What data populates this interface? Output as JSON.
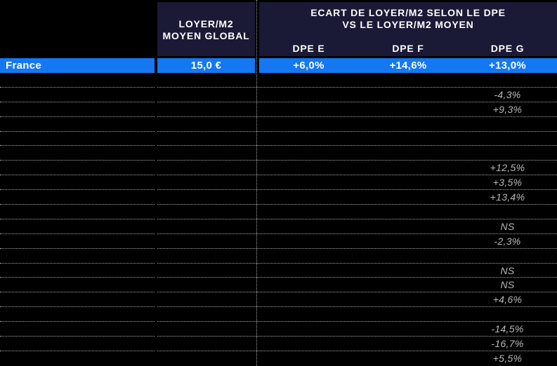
{
  "chart_data": {
    "type": "table",
    "header": {
      "loyer_line1": "LOYER/M2",
      "loyer_line2": "MOYEN GLOBAL",
      "ecart_line1": "ECART DE LOYER/M2 SELON LE DPE",
      "ecart_line2": "VS LE LOYER/M2 MOYEN",
      "dpe_e": "DPE E",
      "dpe_f": "DPE F",
      "dpe_g": "DPE G"
    },
    "france_row": {
      "label": "France",
      "loyer": "15,0 €",
      "dpe_e": "+6,0%",
      "dpe_f": "+14,6%",
      "dpe_g": "+13,0%"
    },
    "body_rows": [
      {
        "label": "",
        "loyer": "",
        "dpe_e": "",
        "dpe_f": "",
        "dpe_g": ""
      },
      {
        "label": "",
        "loyer": "",
        "dpe_e": "",
        "dpe_f": "",
        "dpe_g": "-4,3%"
      },
      {
        "label": "",
        "loyer": "",
        "dpe_e": "",
        "dpe_f": "",
        "dpe_g": "+9,3%"
      },
      {
        "label": "",
        "loyer": "",
        "dpe_e": "",
        "dpe_f": "",
        "dpe_g": ""
      },
      {
        "label": "",
        "loyer": "",
        "dpe_e": "",
        "dpe_f": "",
        "dpe_g": ""
      },
      {
        "label": "",
        "loyer": "",
        "dpe_e": "",
        "dpe_f": "",
        "dpe_g": ""
      },
      {
        "label": "",
        "loyer": "",
        "dpe_e": "",
        "dpe_f": "",
        "dpe_g": "+12,5%"
      },
      {
        "label": "",
        "loyer": "",
        "dpe_e": "",
        "dpe_f": "",
        "dpe_g": "+3,5%"
      },
      {
        "label": "",
        "loyer": "",
        "dpe_e": "",
        "dpe_f": "",
        "dpe_g": "+13,4%"
      },
      {
        "label": "",
        "loyer": "",
        "dpe_e": "",
        "dpe_f": "",
        "dpe_g": ""
      },
      {
        "label": "",
        "loyer": "",
        "dpe_e": "",
        "dpe_f": "",
        "dpe_g": "NS"
      },
      {
        "label": "",
        "loyer": "",
        "dpe_e": "",
        "dpe_f": "",
        "dpe_g": "-2,3%"
      },
      {
        "label": "",
        "loyer": "",
        "dpe_e": "",
        "dpe_f": "",
        "dpe_g": ""
      },
      {
        "label": "",
        "loyer": "",
        "dpe_e": "",
        "dpe_f": "",
        "dpe_g": "NS"
      },
      {
        "label": "",
        "loyer": "",
        "dpe_e": "",
        "dpe_f": "",
        "dpe_g": "NS"
      },
      {
        "label": "",
        "loyer": "",
        "dpe_e": "",
        "dpe_f": "",
        "dpe_g": "+4,6%"
      },
      {
        "label": "",
        "loyer": "",
        "dpe_e": "",
        "dpe_f": "",
        "dpe_g": ""
      },
      {
        "label": "",
        "loyer": "",
        "dpe_e": "",
        "dpe_f": "",
        "dpe_g": "-14,5%"
      },
      {
        "label": "",
        "loyer": "",
        "dpe_e": "",
        "dpe_f": "",
        "dpe_g": "-16,7%"
      },
      {
        "label": "",
        "loyer": "",
        "dpe_e": "",
        "dpe_f": "",
        "dpe_g": "+5,5%"
      }
    ]
  },
  "colors": {
    "background": "#000000",
    "header_navy": "#1a1a36",
    "accent_blue": "#1478f2",
    "grid_line": "#a8a8a8",
    "muted_value": "#b8b8b8",
    "text_white": "#ffffff"
  }
}
